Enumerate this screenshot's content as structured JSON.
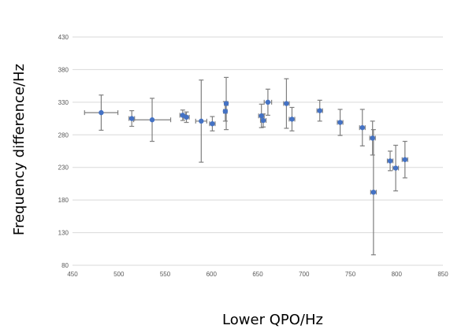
{
  "chart_data": {
    "type": "scatter",
    "title": "",
    "xlabel": "Lower QPO/Hz",
    "ylabel": "Frequency  difference/Hz",
    "xlim": [
      450,
      850
    ],
    "ylim": [
      80,
      430
    ],
    "x_ticks": [
      450,
      500,
      550,
      600,
      650,
      700,
      750,
      800,
      850
    ],
    "y_ticks": [
      80,
      130,
      180,
      230,
      280,
      330,
      380,
      430
    ],
    "grid": "horizontal",
    "legend": "none",
    "colors": {
      "marker": "#4472c4",
      "error_bar": "#7f7f7f",
      "grid": "#d9d9d9"
    },
    "points": [
      {
        "x": 481,
        "y": 314,
        "y_err": 27,
        "x_err": 18
      },
      {
        "x": 514,
        "y": 305,
        "y_err": 12,
        "x_err": 3
      },
      {
        "x": 536,
        "y": 303,
        "y_err": 33,
        "x_err": 20
      },
      {
        "x": 569,
        "y": 310,
        "y_err": 8,
        "x_err": 3
      },
      {
        "x": 573,
        "y": 307,
        "y_err": 8,
        "x_err": 3
      },
      {
        "x": 589,
        "y": 301,
        "y_err": 63,
        "x_err": 6
      },
      {
        "x": 601,
        "y": 297,
        "y_err": 11,
        "x_err": 3
      },
      {
        "x": 615,
        "y": 316,
        "y_err": 15,
        "x_err": 2
      },
      {
        "x": 616,
        "y": 328,
        "y_err": 40,
        "x_err": 2
      },
      {
        "x": 654,
        "y": 309,
        "y_err": 18,
        "x_err": 3
      },
      {
        "x": 656,
        "y": 302,
        "y_err": 10,
        "x_err": 3
      },
      {
        "x": 661,
        "y": 330,
        "y_err": 20,
        "x_err": 4
      },
      {
        "x": 681,
        "y": 328,
        "y_err": 38,
        "x_err": 3
      },
      {
        "x": 687,
        "y": 304,
        "y_err": 18,
        "x_err": 3
      },
      {
        "x": 717,
        "y": 317,
        "y_err": 16,
        "x_err": 3
      },
      {
        "x": 739,
        "y": 299,
        "y_err": 20,
        "x_err": 3
      },
      {
        "x": 763,
        "y": 291,
        "y_err": 28,
        "x_err": 3
      },
      {
        "x": 774,
        "y": 275,
        "y_err": 26,
        "x_err": 3
      },
      {
        "x": 775,
        "y": 192,
        "y_err": 96,
        "x_err": 3
      },
      {
        "x": 793,
        "y": 240,
        "y_err": 15,
        "x_err": 3
      },
      {
        "x": 799,
        "y": 229,
        "y_err": 35,
        "x_err": 3
      },
      {
        "x": 809,
        "y": 242,
        "y_err": 28,
        "x_err": 3
      }
    ]
  }
}
